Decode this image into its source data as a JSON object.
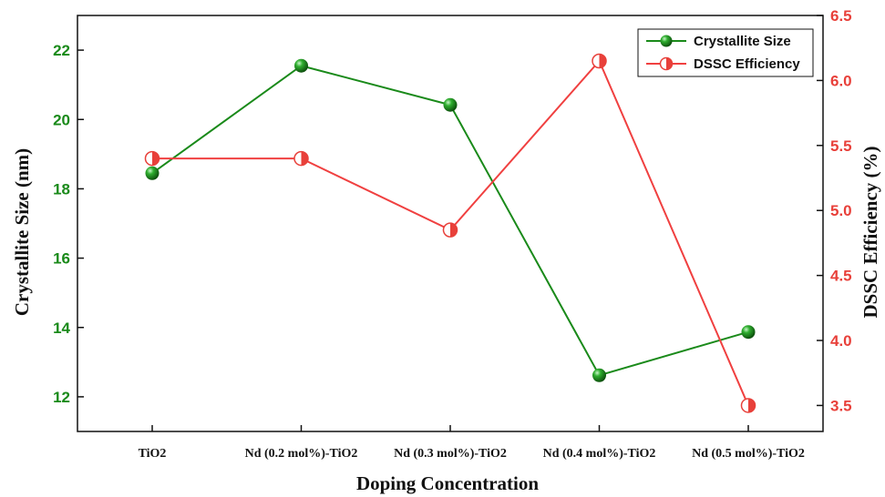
{
  "chart_data": {
    "type": "line",
    "title": "",
    "xlabel": "Doping Concentration",
    "ylabel_left": "Crystallite Size (nm)",
    "ylabel_right": "DSSC Efficiency (%)",
    "categories": [
      "TiO2",
      "Nd (0.2 mol%)-TiO2",
      "Nd (0.3 mol%)-TiO2",
      "Nd (0.4 mol%)-TiO2",
      "Nd (0.5 mol%)-TiO2"
    ],
    "ylim_left": [
      11,
      23
    ],
    "ylim_right": [
      3.3,
      6.5
    ],
    "yticks_left": [
      "12",
      "14",
      "16",
      "18",
      "20",
      "22"
    ],
    "yticks_right": [
      "3.5",
      "4.0",
      "4.5",
      "5.0",
      "5.5",
      "6.0",
      "6.5"
    ],
    "series": [
      {
        "name": "Crystallite Size",
        "axis": "left",
        "color": "#1a8a1a",
        "marker": "filled-sphere",
        "values": [
          18.45,
          21.55,
          20.42,
          12.62,
          13.87
        ]
      },
      {
        "name": "DSSC Efficiency",
        "axis": "right",
        "color": "#f04040",
        "marker": "half-filled-circle",
        "values": [
          5.4,
          5.4,
          4.85,
          6.15,
          3.5
        ]
      }
    ],
    "legend_position": "top-right",
    "grid": false
  }
}
